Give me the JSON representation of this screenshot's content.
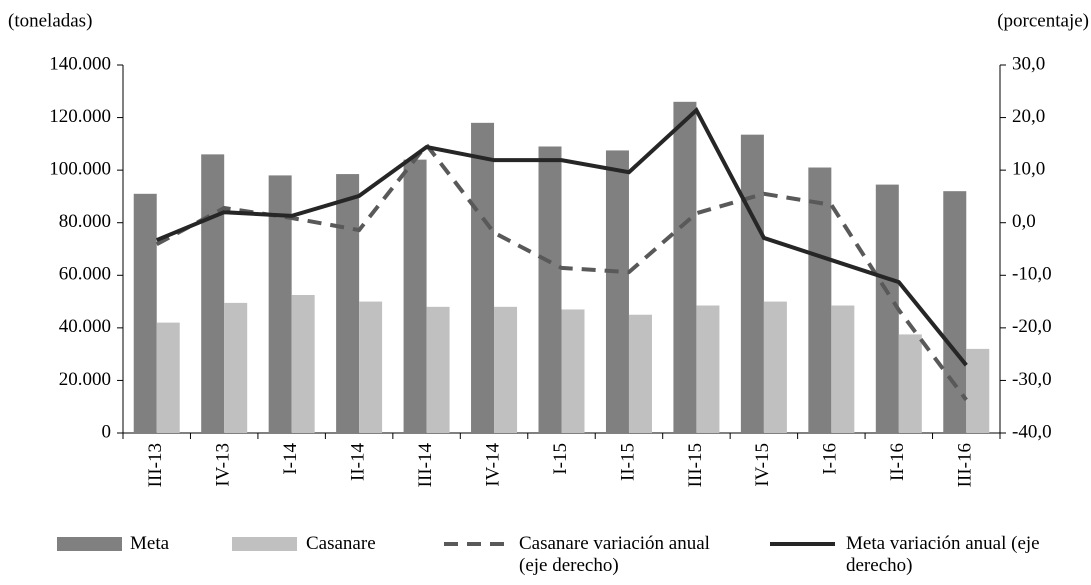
{
  "chart_data": {
    "type": "bar",
    "y_label": "(toneladas)",
    "y2_label": "(porcentaje)",
    "categories": [
      "III-13",
      "IV-13",
      "I-14",
      "II-14",
      "III-14",
      "IV-14",
      "I-15",
      "II-15",
      "III-15",
      "IV-15",
      "I-16",
      "II-16",
      "III-16"
    ],
    "series": [
      {
        "name": "Meta",
        "type": "bar",
        "color": "#808080",
        "values": [
          91000,
          106000,
          98000,
          98500,
          104000,
          118000,
          109000,
          107500,
          126000,
          113500,
          101000,
          94500,
          92000
        ]
      },
      {
        "name": "Casanare",
        "type": "bar",
        "color": "#c0c0c0",
        "values": [
          42000,
          49500,
          52500,
          50000,
          48000,
          48000,
          47000,
          45000,
          48500,
          50000,
          48500,
          37500,
          32000
        ]
      },
      {
        "name": "Casanare variación anual (eje derecho)",
        "type": "line",
        "axis": "y2",
        "dashed": true,
        "color": "#595959",
        "values": [
          -4.1,
          2.8,
          0.9,
          -1.4,
          14.8,
          -1.9,
          -8.6,
          -9.4,
          1.8,
          5.5,
          3.4,
          -16.6,
          -33.7
        ]
      },
      {
        "name": "Meta variación anual (eje derecho)",
        "type": "line",
        "axis": "y2",
        "dashed": false,
        "color": "#262626",
        "values": [
          -3.3,
          2.0,
          1.3,
          5.1,
          14.4,
          11.9,
          11.9,
          9.6,
          21.4,
          -2.9,
          -7.1,
          -11.3,
          -27.1
        ]
      }
    ],
    "ylim": [
      0,
      140000
    ],
    "yticks": [
      0,
      {
        "value": 20000,
        "label": "20.000"
      },
      {
        "value": 40000,
        "label": "40.000"
      },
      {
        "value": 60000,
        "label": "60.000"
      },
      {
        "value": 80000,
        "label": "80.000"
      },
      {
        "value": 100000,
        "label": "100.000"
      },
      {
        "value": 120000,
        "label": "120.000"
      },
      {
        "value": 140000,
        "label": "140.000"
      }
    ],
    "y2lim": [
      -40,
      30
    ],
    "y2ticks": [
      {
        "value": -40,
        "label": "-40,0"
      },
      {
        "value": -30,
        "label": "-30,0"
      },
      {
        "value": -20,
        "label": "-20,0"
      },
      {
        "value": -10,
        "label": "-10,0"
      },
      {
        "value": 0,
        "label": "0,0"
      },
      {
        "value": 10,
        "label": "10,0"
      },
      {
        "value": 20,
        "label": "20,0"
      },
      {
        "value": 30,
        "label": "30,0"
      }
    ],
    "grid": false
  }
}
